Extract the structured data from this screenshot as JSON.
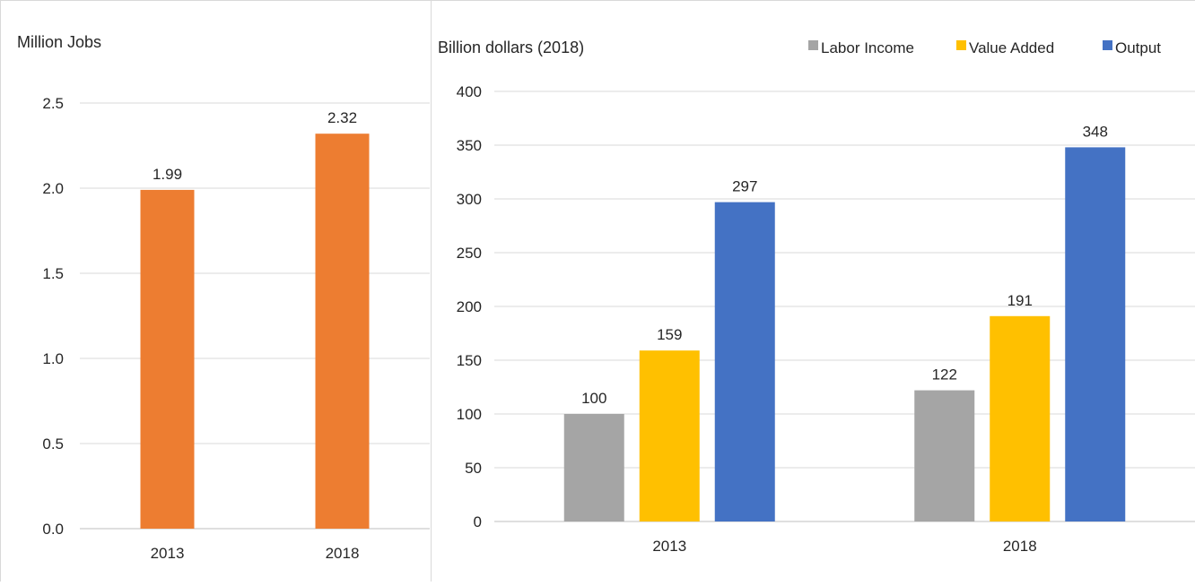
{
  "chart_data": [
    {
      "type": "bar",
      "unit_label": "Million Jobs",
      "title": "",
      "xlabel": "",
      "ylabel": "",
      "categories": [
        "2013",
        "2018"
      ],
      "series": [
        {
          "values": [
            1.99,
            2.32
          ],
          "color": "#ED7D31",
          "labels": [
            "1.99",
            "2.32"
          ]
        }
      ],
      "ylim": [
        0,
        2.5
      ],
      "yticks": [
        0,
        0.5,
        1.0,
        1.5,
        2.0,
        2.5
      ],
      "ytick_labels": [
        "0.0",
        "0.5",
        "1.0",
        "1.5",
        "2.0",
        "2.5"
      ],
      "grid": true,
      "legend": "none"
    },
    {
      "type": "bar",
      "unit_label": "Billion dollars (2018)",
      "title": "",
      "xlabel": "",
      "ylabel": "",
      "categories": [
        "2013",
        "2018"
      ],
      "series": [
        {
          "name": "Labor Income",
          "values": [
            100,
            122
          ],
          "color": "#A5A5A5"
        },
        {
          "name": "Value Added",
          "values": [
            159,
            191
          ],
          "color": "#FFC000"
        },
        {
          "name": "Output",
          "values": [
            297,
            348
          ],
          "color": "#4472C4"
        }
      ],
      "ylim": [
        0,
        400
      ],
      "yticks": [
        0,
        50,
        100,
        150,
        200,
        250,
        300,
        350,
        400
      ],
      "ytick_labels": [
        "0",
        "50",
        "100",
        "150",
        "200",
        "250",
        "300",
        "350",
        "400"
      ],
      "grid": true,
      "legend": "top-right"
    }
  ]
}
